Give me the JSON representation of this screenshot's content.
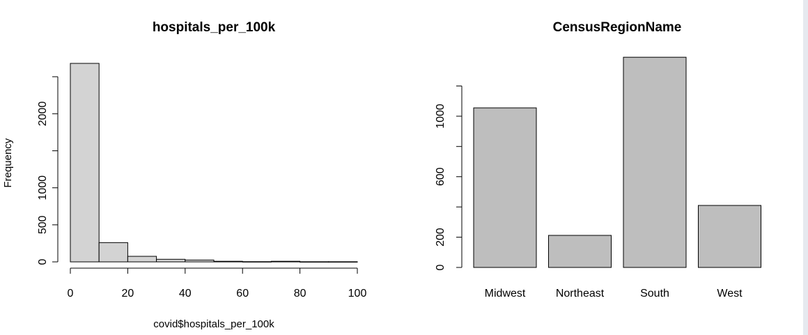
{
  "colors": {
    "hist_fill": "#d3d3d3",
    "bar_fill": "#bebebe",
    "edge": "#000000",
    "scroll_edge": "#e6e9ef"
  },
  "chart_data": [
    {
      "type": "bar",
      "subtype": "histogram",
      "title": "hospitals_per_100k",
      "xlabel": "covid$hospitals_per_100k",
      "ylabel": "Frequency",
      "bins": [
        [
          0,
          10
        ],
        [
          10,
          20
        ],
        [
          20,
          30
        ],
        [
          30,
          40
        ],
        [
          40,
          50
        ],
        [
          50,
          60
        ],
        [
          60,
          70
        ],
        [
          70,
          80
        ],
        [
          80,
          90
        ],
        [
          90,
          100
        ]
      ],
      "values": [
        2680,
        260,
        75,
        35,
        25,
        8,
        3,
        8,
        2,
        2
      ],
      "xlim": [
        0,
        100
      ],
      "ylim": [
        0,
        2680
      ],
      "xticks": [
        "0",
        "20",
        "40",
        "60",
        "80",
        "100"
      ],
      "yticks": [
        "0",
        "500",
        "1000",
        "2000"
      ],
      "grid": false,
      "legend": "none"
    },
    {
      "type": "bar",
      "title": "CensusRegionName",
      "categories": [
        "Midwest",
        "Northeast",
        "South",
        "West"
      ],
      "values": [
        1055,
        212,
        1390,
        410
      ],
      "ylim": [
        0,
        1400
      ],
      "yticks": [
        "0",
        "200",
        "600",
        "1000"
      ],
      "yticks_unlabeled": [
        400,
        800,
        1200
      ],
      "grid": false,
      "legend": "none"
    }
  ]
}
